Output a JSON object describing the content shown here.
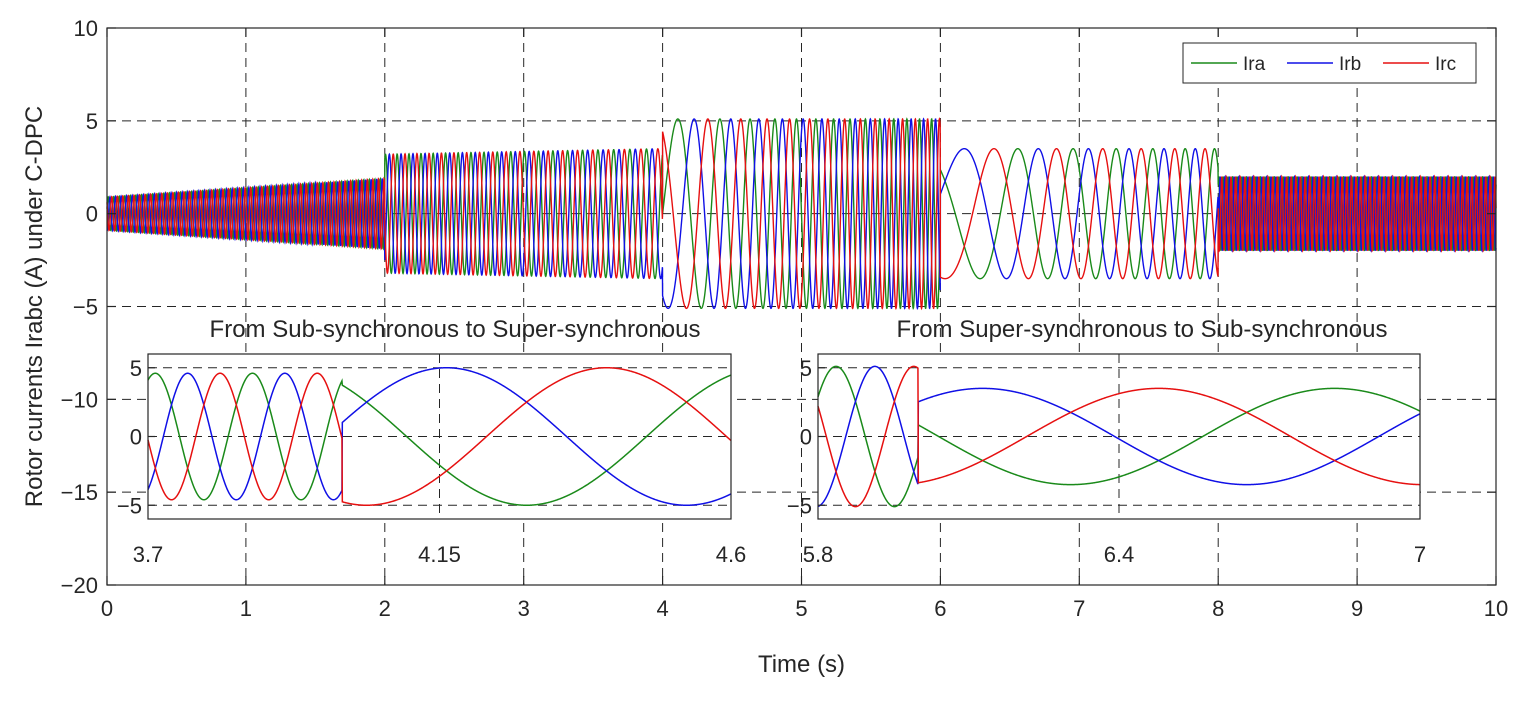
{
  "chart_data": {
    "type": "line",
    "title": "",
    "xlabel": "Time (s)",
    "ylabel": "Rotor currents Irabc (A) under C-DPC",
    "xlim": [
      0,
      10
    ],
    "ylim": [
      -20,
      10
    ],
    "xticks": [
      0,
      1,
      2,
      3,
      4,
      5,
      6,
      7,
      8,
      9,
      10
    ],
    "yticks": [
      10,
      5,
      0,
      -5,
      -10,
      -15,
      -20
    ],
    "grid": "dashed",
    "legend_position": "top-right",
    "series": [
      {
        "name": "Ira",
        "color": "#1a8a1a",
        "phase_deg": 0
      },
      {
        "name": "Irb",
        "color": "#1010e6",
        "phase_deg": -120
      },
      {
        "name": "Irc",
        "color": "#e61010",
        "phase_deg": 120
      }
    ],
    "segments": [
      {
        "t": [
          0,
          2
        ],
        "amplitude": [
          0.9,
          1.9
        ],
        "frequency_hz": 25
      },
      {
        "t": [
          2,
          4
        ],
        "amplitude": [
          3.2,
          3.5
        ],
        "frequency_hz": [
          12,
          8
        ]
      },
      {
        "t": [
          4,
          6
        ],
        "amplitude": 5.1,
        "frequency_hz": [
          2,
          12
        ]
      },
      {
        "t": [
          6,
          8
        ],
        "amplitude": 3.5,
        "frequency_hz": [
          1,
          5
        ]
      },
      {
        "t": [
          8,
          10
        ],
        "amplitude": 2.0,
        "frequency_hz": 30
      }
    ],
    "insets": [
      {
        "title": "From Sub-synchronous to Super-synchronous",
        "xlim": [
          3.7,
          4.6
        ],
        "xticks": [
          3.7,
          4.15,
          4.6
        ],
        "ylim": [
          -6,
          6
        ],
        "yticks": [
          5,
          0,
          -5
        ],
        "event_time": 4.0
      },
      {
        "title": "From Super-synchronous to Sub-synchronous",
        "xlim": [
          5.8,
          7
        ],
        "xticks": [
          5.8,
          6.4,
          7
        ],
        "ylim": [
          -6,
          6
        ],
        "yticks": [
          5,
          0,
          -5
        ],
        "event_time": 6.0
      }
    ]
  }
}
